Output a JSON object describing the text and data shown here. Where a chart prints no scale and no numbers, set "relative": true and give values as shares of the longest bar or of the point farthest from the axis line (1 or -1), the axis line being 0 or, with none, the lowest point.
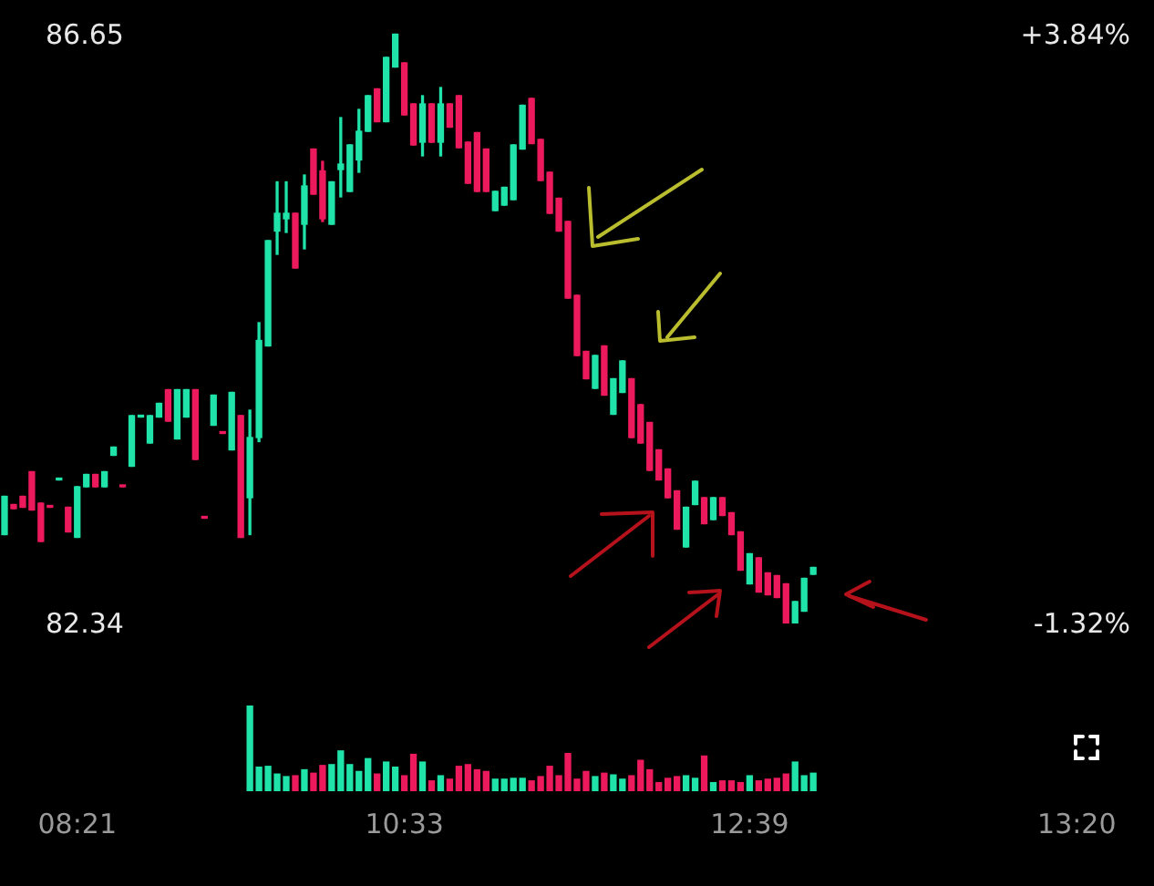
{
  "chart_data": [
    {
      "type": "candlestick",
      "ohlc": [
        [
          82.99,
          83.27,
          82.99,
          83.27
        ],
        [
          83.21,
          83.21,
          83.18,
          83.18
        ],
        [
          83.27,
          83.27,
          83.19,
          83.19
        ],
        [
          83.45,
          83.45,
          83.17,
          83.17
        ],
        [
          83.22,
          83.22,
          82.94,
          82.94
        ],
        [
          83.19,
          83.2,
          83.19,
          83.19
        ],
        [
          83.39,
          83.4,
          83.39,
          83.39
        ],
        [
          83.19,
          83.19,
          83.01,
          83.01
        ],
        [
          82.97,
          83.34,
          82.97,
          83.34
        ],
        [
          83.34,
          83.43,
          83.34,
          83.43
        ],
        [
          83.43,
          83.43,
          83.34,
          83.34
        ],
        [
          83.34,
          83.45,
          83.34,
          83.45
        ],
        [
          83.57,
          83.63,
          83.57,
          83.63
        ],
        [
          83.35,
          83.35,
          83.34,
          83.34
        ],
        [
          83.49,
          83.86,
          83.49,
          83.86
        ],
        [
          83.85,
          83.86,
          83.85,
          83.85
        ],
        [
          83.66,
          83.86,
          83.66,
          83.86
        ],
        [
          83.85,
          83.95,
          83.85,
          83.95
        ],
        [
          84.05,
          84.05,
          83.82,
          83.82
        ],
        [
          83.69,
          84.05,
          83.69,
          84.05
        ],
        [
          83.85,
          84.05,
          83.85,
          84.05
        ],
        [
          84.05,
          84.05,
          83.54,
          83.54
        ],
        [
          83.11,
          83.12,
          83.11,
          83.11
        ],
        [
          83.79,
          84.01,
          83.79,
          84.01
        ],
        [
          83.74,
          83.74,
          83.73,
          83.73
        ],
        [
          83.61,
          84.03,
          83.61,
          84.03
        ],
        [
          83.86,
          83.86,
          82.97,
          82.97
        ],
        [
          83.26,
          83.9,
          82.99,
          83.7
        ],
        [
          83.7,
          84.54,
          83.67,
          84.41
        ],
        [
          84.37,
          85.14,
          84.37,
          85.14
        ],
        [
          85.21,
          85.57,
          85.04,
          85.34
        ],
        [
          85.3,
          85.57,
          85.2,
          85.34
        ],
        [
          85.34,
          85.34,
          84.94,
          84.94
        ],
        [
          85.26,
          85.62,
          85.08,
          85.54
        ],
        [
          85.81,
          85.81,
          85.48,
          85.48
        ],
        [
          85.65,
          85.72,
          85.28,
          85.3
        ],
        [
          85.26,
          85.57,
          85.26,
          85.57
        ],
        [
          85.66,
          86.04,
          85.46,
          85.7
        ],
        [
          85.5,
          85.84,
          85.5,
          85.84
        ],
        [
          85.73,
          86.1,
          85.64,
          85.94
        ],
        [
          85.94,
          86.2,
          85.94,
          86.2
        ],
        [
          86.25,
          86.25,
          86.01,
          86.01
        ],
        [
          86.01,
          86.48,
          86.01,
          86.48
        ],
        [
          86.41,
          86.65,
          86.41,
          86.65
        ],
        [
          86.44,
          86.44,
          86.06,
          86.06
        ],
        [
          86.14,
          86.14,
          85.84,
          85.84
        ],
        [
          85.86,
          86.2,
          85.76,
          86.14
        ],
        [
          86.14,
          86.14,
          85.86,
          85.86
        ],
        [
          85.86,
          86.26,
          85.76,
          86.14
        ],
        [
          86.14,
          86.14,
          85.97,
          85.97
        ],
        [
          86.2,
          86.2,
          85.82,
          85.82
        ],
        [
          85.86,
          85.86,
          85.56,
          85.56
        ],
        [
          85.93,
          85.93,
          85.5,
          85.5
        ],
        [
          85.81,
          85.81,
          85.5,
          85.5
        ],
        [
          85.36,
          85.5,
          85.36,
          85.5
        ],
        [
          85.4,
          85.53,
          85.4,
          85.53
        ],
        [
          85.44,
          85.84,
          85.44,
          85.84
        ],
        [
          85.81,
          86.13,
          85.81,
          86.13
        ],
        [
          86.18,
          86.18,
          85.85,
          85.85
        ],
        [
          85.88,
          85.88,
          85.58,
          85.58
        ],
        [
          85.64,
          85.64,
          85.34,
          85.34
        ],
        [
          85.45,
          85.45,
          85.21,
          85.21
        ],
        [
          85.28,
          85.28,
          84.72,
          84.72
        ],
        [
          84.74,
          84.74,
          84.3,
          84.3
        ],
        [
          84.33,
          84.33,
          84.13,
          84.13
        ],
        [
          84.06,
          84.3,
          84.06,
          84.3
        ],
        [
          84.37,
          84.37,
          84.01,
          84.01
        ],
        [
          83.87,
          84.13,
          83.87,
          84.13
        ],
        [
          84.03,
          84.26,
          84.03,
          84.26
        ],
        [
          84.13,
          84.13,
          83.7,
          83.7
        ],
        [
          83.94,
          83.94,
          83.66,
          83.66
        ],
        [
          83.81,
          83.81,
          83.46,
          83.46
        ],
        [
          83.61,
          83.61,
          83.39,
          83.39
        ],
        [
          83.47,
          83.47,
          83.26,
          83.26
        ],
        [
          83.31,
          83.31,
          83.03,
          83.03
        ],
        [
          82.9,
          83.19,
          82.9,
          83.19
        ],
        [
          83.21,
          83.38,
          83.21,
          83.38
        ],
        [
          83.26,
          83.26,
          83.07,
          83.07
        ],
        [
          83.1,
          83.26,
          83.1,
          83.26
        ],
        [
          83.26,
          83.26,
          83.13,
          83.13
        ],
        [
          83.15,
          83.15,
          82.99,
          82.99
        ],
        [
          83.01,
          83.01,
          82.73,
          82.73
        ],
        [
          82.63,
          82.85,
          82.63,
          82.85
        ],
        [
          82.82,
          82.82,
          82.57,
          82.57
        ],
        [
          82.71,
          82.71,
          82.55,
          82.55
        ],
        [
          82.69,
          82.69,
          82.53,
          82.53
        ],
        [
          82.63,
          82.63,
          82.34,
          82.34
        ],
        [
          82.34,
          82.5,
          82.34,
          82.5
        ],
        [
          82.43,
          82.67,
          82.43,
          82.67
        ],
        [
          82.7,
          82.75,
          82.7,
          82.75
        ],
        null,
        null,
        null,
        null,
        null,
        null,
        null,
        null,
        null,
        null,
        null,
        null,
        null,
        null,
        null,
        null,
        null,
        null,
        null,
        null,
        null,
        null,
        null,
        null,
        null,
        null,
        null,
        null,
        null,
        null,
        null,
        null,
        null,
        null,
        null,
        null,
        null
      ],
      "colors": [
        "#1fe3a9",
        "#ec1a5c",
        "#ec1a5c",
        "#ec1a5c",
        "#ec1a5c",
        "#ec1a5c",
        "#1fe3a9",
        "#ec1a5c",
        "#1fe3a9",
        "#1fe3a9",
        "#ec1a5c",
        "#1fe3a9",
        "#1fe3a9",
        "#ec1a5c",
        "#1fe3a9",
        "#1fe3a9",
        "#1fe3a9",
        "#1fe3a9",
        "#ec1a5c",
        "#1fe3a9",
        "#1fe3a9",
        "#ec1a5c",
        "#ec1a5c",
        "#1fe3a9",
        "#ec1a5c",
        "#1fe3a9",
        "#ec1a5c",
        "#1fe3a9",
        "#1fe3a9",
        "#1fe3a9",
        "#1fe3a9",
        "#1fe3a9",
        "#ec1a5c",
        "#1fe3a9",
        "#ec1a5c",
        "#ec1a5c",
        "#1fe3a9",
        "#1fe3a9",
        "#1fe3a9",
        "#1fe3a9",
        "#1fe3a9",
        "#ec1a5c",
        "#1fe3a9",
        "#1fe3a9",
        "#ec1a5c",
        "#ec1a5c",
        "#1fe3a9",
        "#ec1a5c",
        "#1fe3a9",
        "#ec1a5c",
        "#ec1a5c",
        "#ec1a5c",
        "#ec1a5c",
        "#ec1a5c",
        "#1fe3a9",
        "#1fe3a9",
        "#1fe3a9",
        "#1fe3a9",
        "#ec1a5c",
        "#ec1a5c",
        "#ec1a5c",
        "#ec1a5c",
        "#ec1a5c",
        "#ec1a5c",
        "#ec1a5c",
        "#1fe3a9",
        "#ec1a5c",
        "#1fe3a9",
        "#1fe3a9",
        "#ec1a5c",
        "#ec1a5c",
        "#ec1a5c",
        "#ec1a5c",
        "#ec1a5c",
        "#ec1a5c",
        "#1fe3a9",
        "#1fe3a9",
        "#ec1a5c",
        "#1fe3a9",
        "#ec1a5c",
        "#ec1a5c",
        "#ec1a5c",
        "#1fe3a9",
        "#ec1a5c",
        "#ec1a5c",
        "#ec1a5c",
        "#ec1a5c",
        "#1fe3a9",
        "#1fe3a9",
        "#1fe3a9",
        null,
        null,
        null,
        null,
        null,
        null,
        null,
        null,
        null,
        null,
        null,
        null,
        null,
        null,
        null,
        null,
        null,
        null,
        null,
        null,
        null,
        null,
        null,
        null,
        null,
        null,
        null,
        null,
        null,
        null,
        null,
        null,
        null,
        null,
        null,
        null,
        null
      ],
      "ylim": [
        82.34,
        86.9
      ],
      "yticks": [
        82.34,
        86.65
      ],
      "y2lim": [
        -1.32,
        4.14
      ],
      "y2ticks": [
        {
          "value": -1.32,
          "label": "-1.32%"
        },
        {
          "value": 3.84,
          "label": "+3.84%"
        }
      ],
      "tick_labels": "y"
    },
    {
      "type": "bar",
      "relative": true,
      "categories": [
        null,
        null,
        null,
        null,
        null,
        null,
        null,
        null,
        "08:21",
        null,
        null,
        null,
        null,
        null,
        null,
        null,
        null,
        null,
        null,
        null,
        null,
        null,
        null,
        null,
        null,
        null,
        null,
        null,
        null,
        null,
        null,
        null,
        null,
        null,
        null,
        null,
        null,
        null,
        null,
        null,
        null,
        null,
        null,
        null,
        "10:33",
        null,
        null,
        null,
        null,
        null,
        null,
        null,
        null,
        null,
        null,
        null,
        null,
        null,
        null,
        null,
        null,
        null,
        null,
        null,
        null,
        null,
        null,
        null,
        null,
        null,
        null,
        null,
        null,
        null,
        null,
        null,
        null,
        null,
        null,
        null,
        null,
        null,
        "12:39",
        null,
        null,
        null,
        null,
        null,
        null,
        null,
        null,
        null,
        null,
        null,
        null,
        null,
        null,
        null,
        null,
        null,
        null,
        null,
        null,
        null,
        null,
        null,
        null,
        null,
        null,
        null,
        null,
        null,
        null,
        null,
        null,
        null,
        null,
        null,
        "13:20",
        null,
        null,
        null,
        null,
        null,
        null,
        null,
        null
      ],
      "values": [
        null,
        null,
        null,
        null,
        null,
        null,
        null,
        null,
        null,
        null,
        null,
        null,
        null,
        null,
        null,
        null,
        null,
        null,
        null,
        null,
        null,
        null,
        null,
        null,
        null,
        null,
        null,
        1,
        0.28,
        0.29,
        0.2,
        0.17,
        0.18,
        0.25,
        0.21,
        0.3,
        0.31,
        0.47,
        0.31,
        0.23,
        0.38,
        0.2,
        0.34,
        0.28,
        0.18,
        0.43,
        0.34,
        0.12,
        0.18,
        0.14,
        0.29,
        0.31,
        0.25,
        0.23,
        0.14,
        0.14,
        0.15,
        0.15,
        0.12,
        0.17,
        0.29,
        0.18,
        0.44,
        0.14,
        0.23,
        0.17,
        0.21,
        0.19,
        0.14,
        0.18,
        0.36,
        0.25,
        0.1,
        0.15,
        0.17,
        0.18,
        0.15,
        0.41,
        0.1,
        0.12,
        0.12,
        0.1,
        0.18,
        0.12,
        0.14,
        0.15,
        0.2,
        0.34,
        0.18,
        0.21,
        null,
        null,
        null,
        null,
        null,
        null,
        null,
        null,
        null,
        null,
        null,
        null,
        null,
        null,
        null,
        null,
        null,
        null,
        null,
        null,
        null,
        null,
        null,
        null,
        null,
        null,
        null,
        null,
        null,
        null,
        null,
        null,
        null,
        null,
        null,
        null,
        null
      ],
      "colors": [
        null,
        null,
        null,
        null,
        null,
        null,
        null,
        null,
        null,
        null,
        null,
        null,
        null,
        null,
        null,
        null,
        null,
        null,
        null,
        null,
        null,
        null,
        null,
        null,
        null,
        null,
        null,
        "#1fe3a9",
        "#1fe3a9",
        "#1fe3a9",
        "#1fe3a9",
        "#1fe3a9",
        "#ec1a5c",
        "#1fe3a9",
        "#ec1a5c",
        "#ec1a5c",
        "#1fe3a9",
        "#1fe3a9",
        "#1fe3a9",
        "#1fe3a9",
        "#1fe3a9",
        "#ec1a5c",
        "#1fe3a9",
        "#1fe3a9",
        "#ec1a5c",
        "#ec1a5c",
        "#1fe3a9",
        "#ec1a5c",
        "#1fe3a9",
        "#ec1a5c",
        "#ec1a5c",
        "#ec1a5c",
        "#ec1a5c",
        "#ec1a5c",
        "#1fe3a9",
        "#1fe3a9",
        "#1fe3a9",
        "#1fe3a9",
        "#ec1a5c",
        "#ec1a5c",
        "#ec1a5c",
        "#ec1a5c",
        "#ec1a5c",
        "#ec1a5c",
        "#ec1a5c",
        "#1fe3a9",
        "#ec1a5c",
        "#1fe3a9",
        "#1fe3a9",
        "#ec1a5c",
        "#ec1a5c",
        "#ec1a5c",
        "#ec1a5c",
        "#ec1a5c",
        "#ec1a5c",
        "#1fe3a9",
        "#1fe3a9",
        "#ec1a5c",
        "#1fe3a9",
        "#ec1a5c",
        "#ec1a5c",
        "#ec1a5c",
        "#1fe3a9",
        "#ec1a5c",
        "#ec1a5c",
        "#ec1a5c",
        "#ec1a5c",
        "#1fe3a9",
        "#1fe3a9",
        "#1fe3a9",
        null,
        null,
        null,
        null,
        null,
        null,
        null,
        null,
        null,
        null,
        null,
        null,
        null,
        null,
        null,
        null,
        null,
        null,
        null,
        null,
        null,
        null,
        null,
        null,
        null,
        null,
        null,
        null,
        null,
        null,
        null,
        null,
        null,
        null,
        null,
        null,
        null
      ],
      "tick_labels": "x"
    }
  ]
}
